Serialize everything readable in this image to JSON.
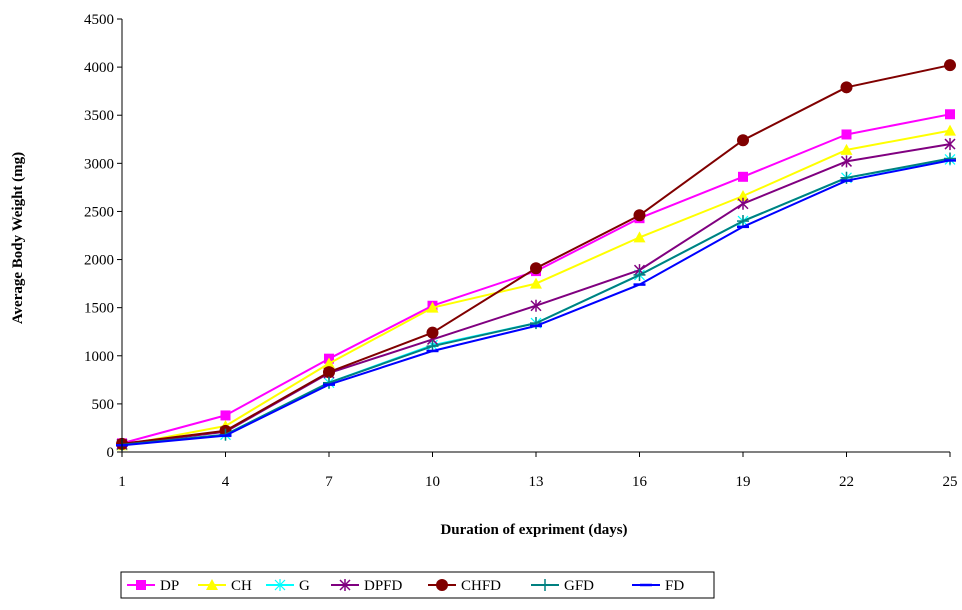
{
  "chart_data": {
    "type": "line",
    "title": "",
    "xlabel": "Duration of expriment (days)",
    "ylabel": "Average Body Weight (mg)",
    "x": [
      1,
      4,
      7,
      10,
      13,
      16,
      19,
      22,
      25
    ],
    "x_tick_labels": [
      "1",
      "4",
      "7",
      "10",
      "13",
      "16",
      "19",
      "22",
      "25"
    ],
    "ylim": [
      0,
      4500
    ],
    "y_ticks": [
      0,
      500,
      1000,
      1500,
      2000,
      2500,
      3000,
      3500,
      4000,
      4500
    ],
    "y_tick_labels": [
      "0",
      "500",
      "1000",
      "1500",
      "2000",
      "2500",
      "3000",
      "3500",
      "4000",
      "4500"
    ],
    "grid": false,
    "legend_position": "bottom",
    "series": [
      {
        "name": "DP",
        "color": "#ff00ff",
        "marker": "square",
        "values": [
          90,
          380,
          970,
          1520,
          1880,
          2430,
          2860,
          3300,
          3510
        ]
      },
      {
        "name": "CH",
        "color": "#ffff00",
        "marker": "triangle",
        "values": [
          70,
          270,
          920,
          1500,
          1750,
          2230,
          2660,
          3140,
          3340
        ]
      },
      {
        "name": "G",
        "color": "#00ffff",
        "marker": "star",
        "values": [
          75,
          180,
          720,
          1110,
          1340,
          1840,
          2400,
          2850,
          3040
        ]
      },
      {
        "name": "DPFD",
        "color": "#800080",
        "marker": "asterisk",
        "values": [
          80,
          210,
          820,
          1170,
          1520,
          1890,
          2580,
          3020,
          3200
        ]
      },
      {
        "name": "CHFD",
        "color": "#800000",
        "marker": "circle",
        "values": [
          85,
          220,
          830,
          1240,
          1910,
          2460,
          3240,
          3790,
          4020
        ]
      },
      {
        "name": "GFD",
        "color": "#008080",
        "marker": "plus",
        "values": [
          75,
          180,
          720,
          1100,
          1340,
          1840,
          2400,
          2850,
          3050
        ]
      },
      {
        "name": "FD",
        "color": "#0000ff",
        "marker": "dash",
        "values": [
          70,
          170,
          700,
          1050,
          1310,
          1740,
          2340,
          2820,
          3030
        ]
      }
    ]
  }
}
